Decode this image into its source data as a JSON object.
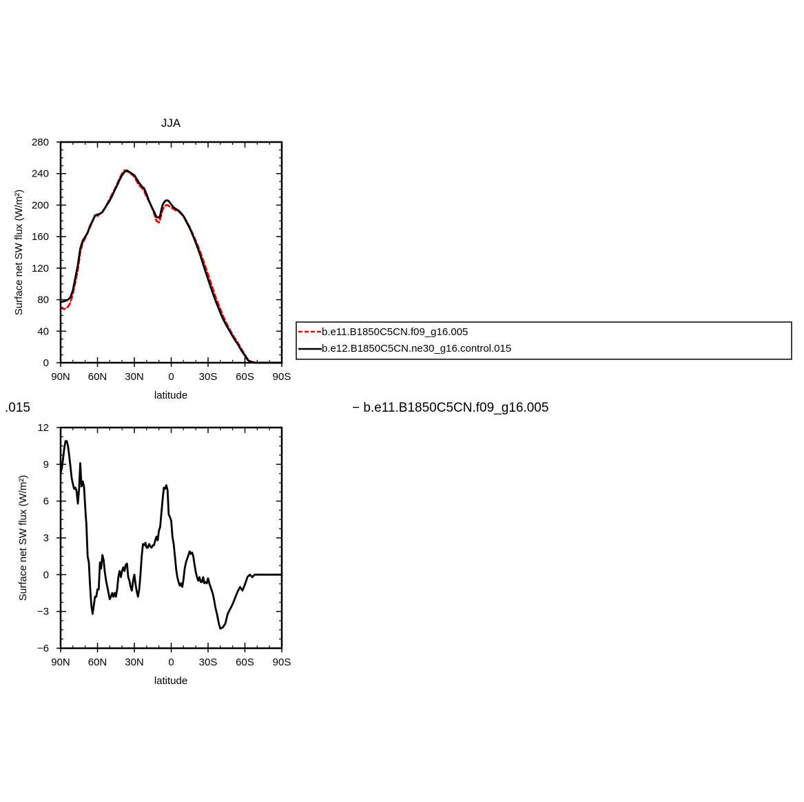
{
  "chart_data": [
    {
      "type": "line",
      "title": "JJA",
      "xlabel": "latitude",
      "ylabel": "Surface net SW flux (W/m²)",
      "xlim": [
        90,
        -90
      ],
      "ylim": [
        0,
        280
      ],
      "x_ticks": [
        90,
        60,
        30,
        0,
        -30,
        -60,
        -90
      ],
      "x_tick_labels": [
        "90N",
        "60N",
        "30N",
        "0",
        "30S",
        "60S",
        "90S"
      ],
      "y_ticks": [
        0,
        40,
        80,
        120,
        160,
        200,
        240,
        280
      ],
      "y_tick_labels": [
        "0",
        "40",
        "80",
        "120",
        "160",
        "200",
        "240",
        "280"
      ],
      "legend_position": "right",
      "series": [
        {
          "name": "b.e11.B1850C5CN.f09_g16.005",
          "color": "#ff0000",
          "dash": "dashed",
          "x": [
            90,
            87,
            84,
            82,
            80,
            78,
            76,
            74,
            72,
            70,
            68,
            66,
            64,
            62,
            60,
            58,
            56,
            54,
            52,
            50,
            48,
            46,
            44,
            42,
            40,
            38,
            36,
            34,
            32,
            30,
            28,
            26,
            24,
            22,
            20,
            18,
            16,
            14,
            12,
            10,
            9,
            8,
            7,
            6,
            5,
            4,
            3,
            2,
            1,
            0,
            -2,
            -4,
            -6,
            -8,
            -10,
            -12,
            -15,
            -18,
            -21,
            -24,
            -27,
            -30,
            -33,
            -36,
            -39,
            -42,
            -45,
            -48,
            -51,
            -54,
            -57,
            -60,
            -62,
            -64,
            -66,
            -68,
            -70,
            -75,
            -80,
            -85,
            -90
          ],
          "y": [
            70,
            68,
            71,
            76,
            88,
            102,
            118,
            140,
            152,
            158,
            165,
            172,
            180,
            186,
            186,
            189,
            192,
            196,
            202,
            208,
            214,
            220,
            227,
            234,
            240,
            244,
            243,
            241,
            239,
            236,
            230,
            225,
            222,
            218,
            210,
            205,
            198,
            190,
            180,
            178,
            182,
            188,
            194,
            197,
            199,
            200,
            200,
            199,
            198,
            197,
            195,
            193,
            192,
            189,
            186,
            181,
            172,
            162,
            151,
            139,
            126,
            112,
            98,
            84,
            72,
            60,
            50,
            41,
            33,
            26,
            18,
            10,
            5,
            2,
            1,
            0.5,
            0,
            0,
            0,
            0,
            0
          ]
        },
        {
          "name": "b.e12.B1850C5CN.ne30_g16.control.015",
          "color": "#000000",
          "dash": "solid",
          "x": [
            90,
            87,
            84,
            82,
            80,
            78,
            76,
            74,
            72,
            70,
            68,
            66,
            64,
            62,
            60,
            58,
            56,
            54,
            52,
            50,
            48,
            46,
            44,
            42,
            40,
            38,
            36,
            34,
            32,
            30,
            28,
            26,
            24,
            22,
            20,
            18,
            16,
            14,
            12,
            10,
            9,
            8,
            7,
            6,
            5,
            4,
            3,
            2,
            1,
            0,
            -2,
            -4,
            -6,
            -8,
            -10,
            -12,
            -15,
            -18,
            -21,
            -24,
            -27,
            -30,
            -33,
            -36,
            -39,
            -42,
            -45,
            -48,
            -51,
            -54,
            -57,
            -60,
            -62,
            -64,
            -66,
            -68,
            -70,
            -75,
            -80,
            -85,
            -90
          ],
          "y": [
            77,
            78,
            80,
            83,
            92,
            108,
            124,
            145,
            155,
            160,
            165,
            174,
            180,
            187,
            188,
            189,
            191,
            196,
            201,
            206,
            212,
            219,
            225,
            232,
            238,
            242,
            244,
            242,
            240,
            238,
            233,
            228,
            224,
            221,
            214,
            205,
            198,
            192,
            185,
            184,
            187,
            194,
            200,
            203,
            205,
            206,
            206,
            205,
            203,
            201,
            197,
            195,
            193,
            190,
            186,
            180,
            171,
            160,
            148,
            135,
            120,
            106,
            92,
            79,
            67,
            56,
            47,
            39,
            31,
            24,
            16,
            9,
            4,
            1.5,
            0.5,
            0,
            0,
            0,
            0,
            0,
            0
          ]
        }
      ]
    },
    {
      "type": "line",
      "title": "",
      "xlabel": "latitude",
      "ylabel": "Surface net SW flux (W/m²)",
      "xlim": [
        90,
        -90
      ],
      "ylim": [
        -6,
        12
      ],
      "x_ticks": [
        90,
        60,
        30,
        0,
        -30,
        -60,
        -90
      ],
      "x_tick_labels": [
        "90N",
        "60N",
        "30N",
        "0",
        "30S",
        "60S",
        "90S"
      ],
      "y_ticks": [
        -6,
        -3,
        0,
        3,
        6,
        9,
        12
      ],
      "y_tick_labels": [
        "−6",
        "−3",
        "0",
        "3",
        "6",
        "9",
        "12"
      ],
      "difference_label_left": ".015",
      "difference_label_right": "− b.e11.B1850C5CN.f09_g16.005",
      "series": [
        {
          "color": "#000000",
          "x": [
            90,
            89,
            88,
            87,
            86,
            85,
            84,
            83,
            82,
            81,
            80,
            79,
            78,
            77,
            76,
            75,
            74,
            73,
            72,
            71,
            70,
            69,
            68,
            67,
            66,
            65,
            64,
            63,
            62,
            61,
            60,
            59,
            58,
            57,
            56,
            55,
            54,
            53,
            52,
            51,
            50,
            49,
            48,
            47,
            46,
            45,
            44,
            43,
            42,
            41,
            40,
            39,
            38,
            37,
            36,
            35,
            34,
            33,
            32,
            31,
            30,
            29,
            28,
            27,
            26,
            25,
            24,
            23,
            22,
            21,
            20,
            19,
            18,
            17,
            16,
            15,
            14,
            13,
            12,
            11,
            10,
            9,
            8,
            7,
            6,
            5,
            4,
            3,
            2,
            1,
            0,
            -1,
            -2,
            -3,
            -4,
            -5,
            -6,
            -7,
            -8,
            -9,
            -10,
            -11,
            -12,
            -13,
            -14,
            -15,
            -16,
            -17,
            -18,
            -19,
            -20,
            -21,
            -22,
            -23,
            -24,
            -25,
            -26,
            -27,
            -28,
            -29,
            -30,
            -31,
            -32,
            -33,
            -34,
            -35,
            -36,
            -37,
            -38,
            -39,
            -40,
            -42,
            -44,
            -46,
            -48,
            -50,
            -52,
            -54,
            -56,
            -58,
            -60,
            -62,
            -64,
            -66,
            -68,
            -70,
            -75,
            -80,
            -85,
            -90
          ],
          "y": [
            8.3,
            8.7,
            9.5,
            10.3,
            10.9,
            10.9,
            10.5,
            9.7,
            8.8,
            7.9,
            7.4,
            7.0,
            7.1,
            6.8,
            5.8,
            7.0,
            9.1,
            7.2,
            7.6,
            7.2,
            5.5,
            4.0,
            1.5,
            1.0,
            -1.0,
            -2.5,
            -3.2,
            -2.5,
            -1.8,
            -1.8,
            -1.2,
            -1.2,
            1.0,
            0.5,
            1.6,
            1.2,
            0.2,
            -0.5,
            -1.0,
            -1.5,
            -2.0,
            -1.8,
            -1.5,
            -1.8,
            -1.5,
            -1.8,
            -1.2,
            -0.2,
            0.3,
            -0.2,
            0.3,
            0.6,
            0.3,
            0.8,
            0.9,
            -0.2,
            -0.5,
            -1.0,
            -1.3,
            -0.5,
            0.0,
            -0.8,
            -1.4,
            -1.8,
            -1.2,
            0.0,
            1.5,
            2.5,
            2.4,
            2.6,
            2.2,
            2.2,
            2.5,
            2.3,
            2.2,
            2.4,
            2.4,
            2.8,
            3.1,
            2.8,
            3.6,
            3.9,
            5.0,
            6.1,
            7.1,
            7.0,
            7.3,
            6.9,
            4.9,
            4.7,
            4.4,
            3.1,
            2.5,
            1.5,
            0.5,
            -0.2,
            -0.6,
            -0.9,
            -0.7,
            -1.0,
            -0.4,
            0.5,
            1.0,
            1.3,
            1.6,
            1.9,
            1.7,
            1.8,
            1.5,
            0.8,
            0.2,
            -0.2,
            -0.5,
            -0.2,
            -0.6,
            -0.6,
            -0.2,
            -0.7,
            -0.6,
            -0.7,
            -0.3,
            -0.7,
            -1.0,
            -1.3,
            -1.6,
            -2.1,
            -2.7,
            -3.1,
            -3.6,
            -4.1,
            -4.4,
            -4.3,
            -4.0,
            -3.2,
            -2.8,
            -2.4,
            -1.9,
            -1.4,
            -1.0,
            -1.3,
            -0.8,
            -0.2,
            0.0,
            -0.2,
            0.0,
            0.0,
            0.0,
            0.0,
            0.0,
            0.0
          ]
        }
      ]
    }
  ]
}
